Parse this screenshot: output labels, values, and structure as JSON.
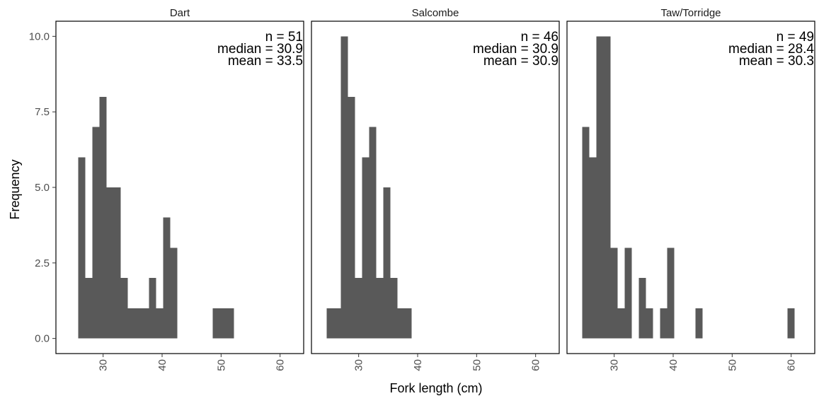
{
  "chart_data": {
    "type": "bar",
    "xlabel": "Fork length (cm)",
    "ylabel": "Frequency",
    "xlim": [
      22,
      64
    ],
    "ylim": [
      -0.5,
      10.5
    ],
    "x_ticks": [
      30,
      40,
      50,
      60
    ],
    "y_ticks": [
      0,
      2.5,
      5,
      7.5,
      10
    ],
    "y_tick_labels": [
      "0.0",
      "2.5",
      "5.0",
      "7.5",
      "10.0"
    ],
    "bin_width": 1.2,
    "bar_color": "#595959",
    "grid": false,
    "panels": [
      {
        "name": "Dart",
        "stats": [
          "n = 51",
          "median = 30.9",
          "mean = 33.5"
        ],
        "bins": [
          {
            "x0": 25.8,
            "count": 6
          },
          {
            "x0": 27.0,
            "count": 2
          },
          {
            "x0": 28.2,
            "count": 7
          },
          {
            "x0": 29.4,
            "count": 8
          },
          {
            "x0": 30.6,
            "count": 5
          },
          {
            "x0": 31.8,
            "count": 5
          },
          {
            "x0": 33.0,
            "count": 2
          },
          {
            "x0": 34.2,
            "count": 1
          },
          {
            "x0": 35.4,
            "count": 1
          },
          {
            "x0": 36.6,
            "count": 1
          },
          {
            "x0": 37.8,
            "count": 2
          },
          {
            "x0": 39.0,
            "count": 1
          },
          {
            "x0": 40.2,
            "count": 4
          },
          {
            "x0": 41.4,
            "count": 3
          },
          {
            "x0": 48.6,
            "count": 1
          },
          {
            "x0": 49.8,
            "count": 1
          },
          {
            "x0": 51.0,
            "count": 1
          }
        ]
      },
      {
        "name": "Salcombe",
        "stats": [
          "n = 46",
          "median = 30.9",
          "mean = 30.9"
        ],
        "bins": [
          {
            "x0": 24.6,
            "count": 1
          },
          {
            "x0": 25.8,
            "count": 1
          },
          {
            "x0": 27.0,
            "count": 10
          },
          {
            "x0": 28.2,
            "count": 8
          },
          {
            "x0": 29.4,
            "count": 2
          },
          {
            "x0": 30.6,
            "count": 6
          },
          {
            "x0": 31.8,
            "count": 7
          },
          {
            "x0": 33.0,
            "count": 2
          },
          {
            "x0": 34.2,
            "count": 5
          },
          {
            "x0": 35.4,
            "count": 2
          },
          {
            "x0": 36.6,
            "count": 1
          },
          {
            "x0": 37.8,
            "count": 1
          }
        ]
      },
      {
        "name": "Taw/Torridge",
        "stats": [
          "n = 49",
          "median = 28.4",
          "mean = 30.3"
        ],
        "bins": [
          {
            "x0": 24.6,
            "count": 7
          },
          {
            "x0": 25.8,
            "count": 6
          },
          {
            "x0": 27.0,
            "count": 10
          },
          {
            "x0": 28.2,
            "count": 10
          },
          {
            "x0": 29.4,
            "count": 3
          },
          {
            "x0": 30.6,
            "count": 1
          },
          {
            "x0": 31.8,
            "count": 3
          },
          {
            "x0": 34.2,
            "count": 2
          },
          {
            "x0": 35.4,
            "count": 1
          },
          {
            "x0": 37.8,
            "count": 1
          },
          {
            "x0": 39.0,
            "count": 3
          },
          {
            "x0": 43.8,
            "count": 1
          },
          {
            "x0": 59.4,
            "count": 1
          }
        ]
      }
    ]
  }
}
